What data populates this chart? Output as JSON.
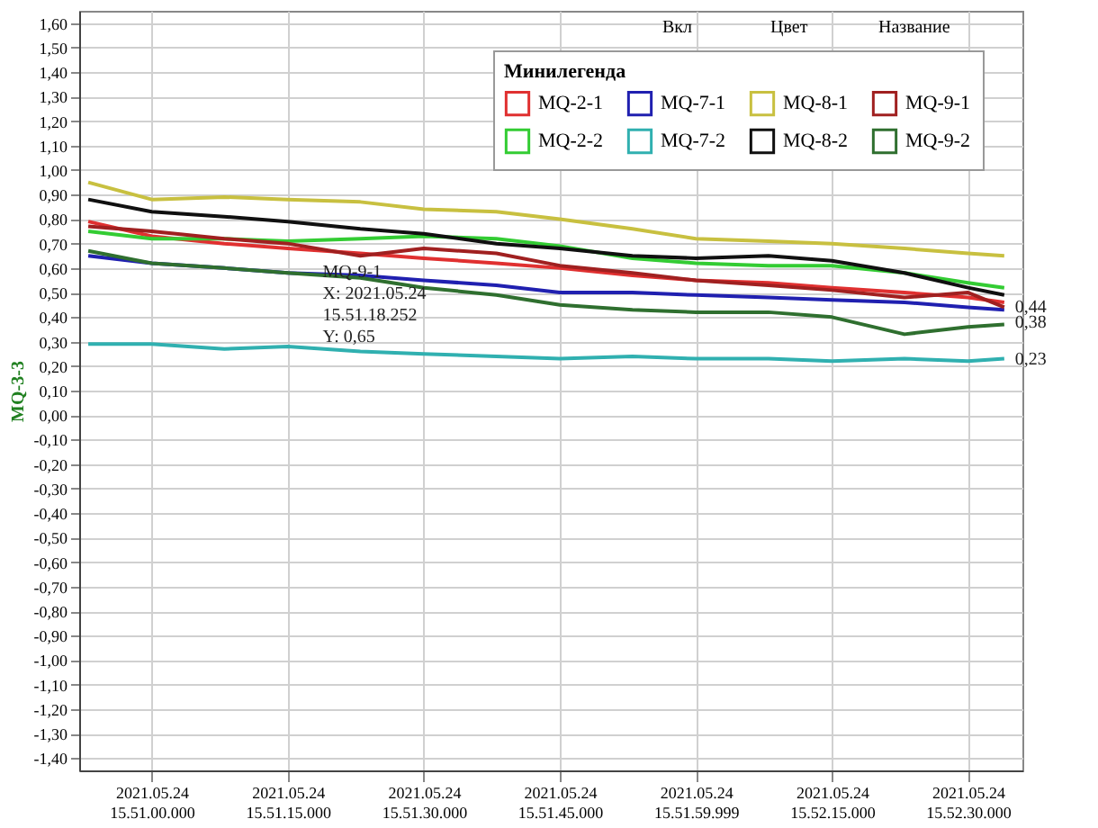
{
  "chart_data": {
    "type": "line",
    "ylabel": "MQ-3-3",
    "legend_title": "Минилегенда",
    "x": [
      "2021-05-24T15:50:53",
      "2021-05-24T15:51:00",
      "2021-05-24T15:51:08",
      "2021-05-24T15:51:15",
      "2021-05-24T15:51:23",
      "2021-05-24T15:51:30",
      "2021-05-24T15:51:38",
      "2021-05-24T15:51:45",
      "2021-05-24T15:51:53",
      "2021-05-24T15:52:00",
      "2021-05-24T15:52:08",
      "2021-05-24T15:52:15",
      "2021-05-24T15:52:23",
      "2021-05-24T15:52:30",
      "2021-05-24T15:52:34"
    ],
    "series": [
      {
        "name": "MQ-2-1",
        "color": "#e03030",
        "values": [
          0.79,
          0.73,
          0.7,
          0.68,
          0.66,
          0.64,
          0.62,
          0.6,
          0.57,
          0.55,
          0.54,
          0.52,
          0.5,
          0.48,
          0.46
        ]
      },
      {
        "name": "MQ-2-2",
        "color": "#33cc33",
        "values": [
          0.75,
          0.72,
          0.72,
          0.71,
          0.72,
          0.73,
          0.72,
          0.69,
          0.64,
          0.62,
          0.61,
          0.61,
          0.58,
          0.54,
          0.52
        ]
      },
      {
        "name": "MQ-7-1",
        "color": "#2020b0",
        "values": [
          0.65,
          0.62,
          0.6,
          0.58,
          0.57,
          0.55,
          0.53,
          0.5,
          0.5,
          0.49,
          0.48,
          0.47,
          0.46,
          0.44,
          0.43
        ]
      },
      {
        "name": "MQ-7-2",
        "color": "#30b0b0",
        "values": [
          0.29,
          0.29,
          0.27,
          0.28,
          0.26,
          0.25,
          0.24,
          0.23,
          0.24,
          0.23,
          0.23,
          0.22,
          0.23,
          0.22,
          0.23
        ]
      },
      {
        "name": "MQ-8-1",
        "color": "#c8c040",
        "values": [
          0.95,
          0.88,
          0.89,
          0.88,
          0.87,
          0.84,
          0.83,
          0.8,
          0.76,
          0.72,
          0.71,
          0.7,
          0.68,
          0.66,
          0.65
        ]
      },
      {
        "name": "MQ-8-2",
        "color": "#101010",
        "values": [
          0.88,
          0.83,
          0.81,
          0.79,
          0.76,
          0.74,
          0.7,
          0.68,
          0.65,
          0.64,
          0.65,
          0.63,
          0.58,
          0.52,
          0.49
        ]
      },
      {
        "name": "MQ-9-1",
        "color": "#a02020",
        "values": [
          0.77,
          0.75,
          0.72,
          0.7,
          0.65,
          0.68,
          0.66,
          0.61,
          0.58,
          0.55,
          0.53,
          0.51,
          0.48,
          0.5,
          0.44
        ]
      },
      {
        "name": "MQ-9-2",
        "color": "#2f6f2f",
        "values": [
          0.67,
          0.62,
          0.6,
          0.58,
          0.56,
          0.52,
          0.49,
          0.45,
          0.43,
          0.42,
          0.42,
          0.4,
          0.33,
          0.36,
          0.37
        ]
      }
    ],
    "xlim": [
      "2021-05-24T15:50:52",
      "2021-05-24T15:52:36"
    ],
    "xticks": [
      {
        "value": "2021-05-24T15:51:00",
        "label": "2021.05.24 15.51.00.000"
      },
      {
        "value": "2021-05-24T15:51:15",
        "label": "2021.05.24 15.51.15.000"
      },
      {
        "value": "2021-05-24T15:51:30",
        "label": "2021.05.24 15.51.30.000"
      },
      {
        "value": "2021-05-24T15:51:45",
        "label": "2021.05.24 15.51.45.000"
      },
      {
        "value": "2021-05-24T15:51:59.999",
        "label": "2021.05.24 15.51.59.999"
      },
      {
        "value": "2021-05-24T15:52:15",
        "label": "2021.05.24 15.52.15.000"
      },
      {
        "value": "2021-05-24T15:52:30",
        "label": "2021.05.24 15.52.30.000"
      }
    ],
    "ylim": [
      -1.45,
      1.65
    ],
    "yticks": [
      {
        "value": 1.6,
        "label": "1,60"
      },
      {
        "value": 1.5,
        "label": "1,50"
      },
      {
        "value": 1.4,
        "label": "1,40"
      },
      {
        "value": 1.3,
        "label": "1,30"
      },
      {
        "value": 1.2,
        "label": "1,20"
      },
      {
        "value": 1.1,
        "label": "1,10"
      },
      {
        "value": 1.0,
        "label": "1,00"
      },
      {
        "value": 0.9,
        "label": "0,90"
      },
      {
        "value": 0.8,
        "label": "0,80"
      },
      {
        "value": 0.7,
        "label": "0,70"
      },
      {
        "value": 0.6,
        "label": "0,60"
      },
      {
        "value": 0.5,
        "label": "0,50"
      },
      {
        "value": 0.4,
        "label": "0,40"
      },
      {
        "value": 0.3,
        "label": "0,30"
      },
      {
        "value": 0.2,
        "label": "0,20"
      },
      {
        "value": 0.1,
        "label": "0,10"
      },
      {
        "value": 0,
        "label": "0,00"
      },
      {
        "value": -0.1,
        "label": "-0,10"
      },
      {
        "value": -0.2,
        "label": "-0,20"
      },
      {
        "value": -0.3,
        "label": "-0,30"
      },
      {
        "value": -0.4,
        "label": "-0,40"
      },
      {
        "value": -0.5,
        "label": "-0,50"
      },
      {
        "value": -0.6,
        "label": "-0,60"
      },
      {
        "value": -0.7,
        "label": "-0,70"
      },
      {
        "value": -0.8,
        "label": "-0,80"
      },
      {
        "value": -0.9,
        "label": "-0,90"
      },
      {
        "value": -1.0,
        "label": "-1,00"
      },
      {
        "value": -1.1,
        "label": "-1,10"
      },
      {
        "value": -1.2,
        "label": "-1,20"
      },
      {
        "value": -1.3,
        "label": "-1,30"
      },
      {
        "value": -1.4,
        "label": "-1,40"
      }
    ],
    "annotations": [
      "Вкл",
      "Цвет",
      "Название",
      {
        "text": "MQ-9-1\nX: 2021.05.24\n15.51.18.252\nY: 0,65",
        "x": "2021-05-24T15:51:18.252",
        "y": 0.65
      },
      {
        "text": "0,44",
        "x": "2021-05-24T15:52:34",
        "y": 0.44
      },
      {
        "text": "0,38",
        "x": "2021-05-24T15:52:34",
        "y": 0.38
      },
      {
        "text": "0,23",
        "x": "2021-05-24T15:52:34",
        "y": 0.23
      }
    ],
    "grid": true,
    "legend": "top right",
    "marker": "none",
    "line_style": "solid"
  }
}
